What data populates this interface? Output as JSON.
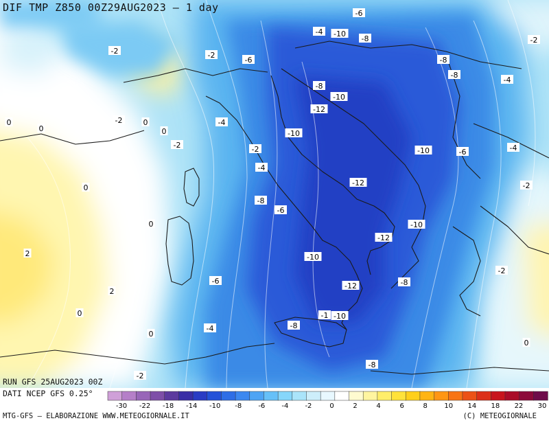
{
  "header": {
    "title": "DIF TMP Z850 00Z29AUG2023 — 1 day"
  },
  "run_info": {
    "line1": "RUN GFS 25AUG2023 00Z",
    "line2": "DATI NCEP GFS 0.25°"
  },
  "footer": {
    "left": "MTG-GFS — ELABORAZIONE WWW.METEOGIORNALE.IT",
    "right": "(C) METEOGIORNALE"
  },
  "colorbar": {
    "ticks": [
      "-30",
      "-22",
      "-18",
      "-14",
      "-10",
      "-8",
      "-6",
      "-4",
      "-2",
      "0",
      "2",
      "4",
      "6",
      "8",
      "10",
      "14",
      "18",
      "22",
      "30"
    ],
    "colors": [
      "#cfa0d8",
      "#b57fc8",
      "#9866b8",
      "#7e4fa8",
      "#5c3a9e",
      "#3a2ea6",
      "#2a3cc4",
      "#2452d8",
      "#2e6ee6",
      "#3c88f0",
      "#4ea4f4",
      "#66c0f8",
      "#86d6fa",
      "#aae4fa",
      "#cdeefa",
      "#e8f8ff",
      "#ffffff",
      "#fffbd0",
      "#fff5a0",
      "#ffee6a",
      "#ffe23a",
      "#ffcf1a",
      "#ffb414",
      "#ff9614",
      "#f87414",
      "#ec5216",
      "#dc3018",
      "#c8141c",
      "#aa0c28",
      "#8c0a3a",
      "#6e0c4a"
    ]
  },
  "contour_labels": [
    {
      "text": "-6",
      "lon": 523,
      "lat": 19
    },
    {
      "text": "-4",
      "lon": 465,
      "lat": 46
    },
    {
      "text": "-10",
      "lon": 495,
      "lat": 49
    },
    {
      "text": "-8",
      "lon": 532,
      "lat": 56
    },
    {
      "text": "-2",
      "lon": 778,
      "lat": 58
    },
    {
      "text": "-2",
      "lon": 167,
      "lat": 74
    },
    {
      "text": "-2",
      "lon": 308,
      "lat": 80
    },
    {
      "text": "-6",
      "lon": 362,
      "lat": 87
    },
    {
      "text": "-8",
      "lon": 646,
      "lat": 87
    },
    {
      "text": "-8",
      "lon": 662,
      "lat": 109
    },
    {
      "text": "-4",
      "lon": 739,
      "lat": 116
    },
    {
      "text": "-8",
      "lon": 465,
      "lat": 125
    },
    {
      "text": "-10",
      "lon": 494,
      "lat": 141
    },
    {
      "text": "-12",
      "lon": 465,
      "lat": 159
    },
    {
      "text": "-2",
      "lon": 173,
      "lat": 175
    },
    {
      "text": "0",
      "lon": 212,
      "lat": 178
    },
    {
      "text": "-4",
      "lon": 323,
      "lat": 178
    },
    {
      "text": "0",
      "lon": 13,
      "lat": 178
    },
    {
      "text": "0",
      "lon": 60,
      "lat": 187
    },
    {
      "text": "0",
      "lon": 239,
      "lat": 191
    },
    {
      "text": "-10",
      "lon": 428,
      "lat": 194
    },
    {
      "text": "-2",
      "lon": 258,
      "lat": 211
    },
    {
      "text": "-2",
      "lon": 372,
      "lat": 217
    },
    {
      "text": "-10",
      "lon": 617,
      "lat": 219
    },
    {
      "text": "-6",
      "lon": 674,
      "lat": 221
    },
    {
      "text": "-4",
      "lon": 748,
      "lat": 215
    },
    {
      "text": "-4",
      "lon": 381,
      "lat": 244
    },
    {
      "text": "-12",
      "lon": 522,
      "lat": 266
    },
    {
      "text": "-2",
      "lon": 767,
      "lat": 270
    },
    {
      "text": "0",
      "lon": 125,
      "lat": 273
    },
    {
      "text": "-8",
      "lon": 380,
      "lat": 292
    },
    {
      "text": "-6",
      "lon": 409,
      "lat": 306
    },
    {
      "text": "0",
      "lon": 220,
      "lat": 326
    },
    {
      "text": "-10",
      "lon": 607,
      "lat": 327
    },
    {
      "text": "-12",
      "lon": 559,
      "lat": 346
    },
    {
      "text": "2",
      "lon": 40,
      "lat": 369
    },
    {
      "text": "-10",
      "lon": 456,
      "lat": 374
    },
    {
      "text": "-2",
      "lon": 731,
      "lat": 394
    },
    {
      "text": "-6",
      "lon": 314,
      "lat": 409
    },
    {
      "text": "-8",
      "lon": 589,
      "lat": 411
    },
    {
      "text": "-12",
      "lon": 511,
      "lat": 416
    },
    {
      "text": "2",
      "lon": 163,
      "lat": 424
    },
    {
      "text": "0",
      "lon": 116,
      "lat": 456
    },
    {
      "text": "-1",
      "lon": 473,
      "lat": 459
    },
    {
      "text": "-10",
      "lon": 495,
      "lat": 460
    },
    {
      "text": "-8",
      "lon": 428,
      "lat": 474
    },
    {
      "text": "-4",
      "lon": 306,
      "lat": 478
    },
    {
      "text": "0",
      "lon": 220,
      "lat": 486
    },
    {
      "text": "0",
      "lon": 767,
      "lat": 499
    },
    {
      "text": "-8",
      "lon": 542,
      "lat": 531
    },
    {
      "text": "-2",
      "lon": 204,
      "lat": 547
    }
  ]
}
